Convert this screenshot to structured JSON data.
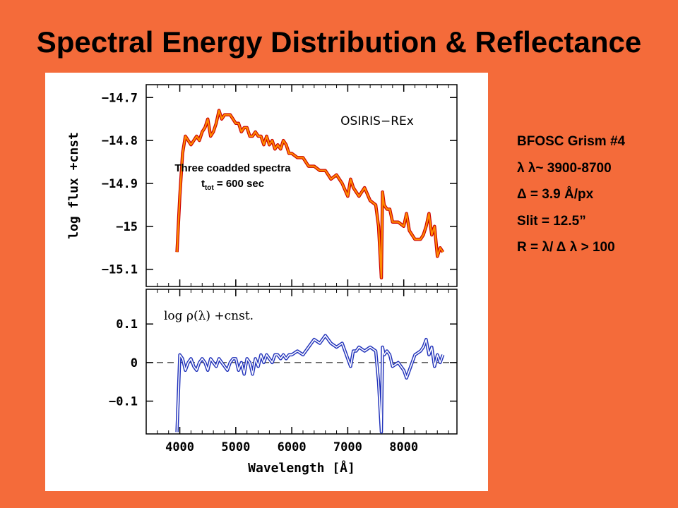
{
  "slide": {
    "title": "Spectral Energy Distribution & Reflectance"
  },
  "specs": [
    "BFOSC Grism #4",
    "λ λ~ 3900-8700",
    "Δ = 3.9 Å/px",
    "Slit = 12.5”",
    "R = λ/ Δ λ > 100"
  ],
  "annotation": {
    "line1": "Three coadded spectra",
    "t_symbol": "t",
    "t_sub": "tot",
    "t_rest": " = 600 sec"
  },
  "colors": {
    "background": "#f46b3a",
    "flux_line": "#ff8c00",
    "flux_edge": "#cc0000",
    "reflectance_line": "#2233bb"
  },
  "chart_data": [
    {
      "type": "line",
      "panel": "top",
      "title": "",
      "label": "OSIRIS−REx",
      "ylabel": "log flux +cnst",
      "xlabel": "",
      "xlim": [
        3400,
        8950
      ],
      "ylim": [
        -15.14,
        -14.67
      ],
      "yticks": [
        -14.7,
        -14.8,
        -14.9,
        -15,
        -15.1
      ],
      "ytick_labels": [
        "−14.7",
        "−14.8",
        "−14.9",
        "−15",
        "−15.1"
      ],
      "grid": false,
      "series": [
        {
          "x": [
            3950,
            4000,
            4050,
            4100,
            4150,
            4200,
            4250,
            4300,
            4350,
            4400,
            4450,
            4500,
            4550,
            4600,
            4650,
            4700,
            4750,
            4800,
            4850,
            4900,
            4950,
            5000,
            5050,
            5100,
            5150,
            5200,
            5250,
            5300,
            5350,
            5400,
            5450,
            5500,
            5550,
            5600,
            5650,
            5700,
            5750,
            5800,
            5850,
            5900,
            5950,
            6000,
            6100,
            6200,
            6300,
            6400,
            6500,
            6600,
            6700,
            6800,
            6900,
            7000,
            7050,
            7100,
            7150,
            7200,
            7300,
            7400,
            7500,
            7550,
            7600,
            7620,
            7650,
            7700,
            7750,
            7800,
            7900,
            8000,
            8050,
            8100,
            8200,
            8300,
            8350,
            8400,
            8450,
            8500,
            8550,
            8600,
            8650,
            8700
          ],
          "values": [
            -15.06,
            -14.93,
            -14.83,
            -14.79,
            -14.8,
            -14.81,
            -14.8,
            -14.79,
            -14.8,
            -14.78,
            -14.77,
            -14.75,
            -14.79,
            -14.78,
            -14.76,
            -14.73,
            -14.75,
            -14.74,
            -14.74,
            -14.74,
            -14.75,
            -14.76,
            -14.76,
            -14.78,
            -14.77,
            -14.77,
            -14.79,
            -14.79,
            -14.78,
            -14.79,
            -14.79,
            -14.81,
            -14.79,
            -14.81,
            -14.8,
            -14.82,
            -14.81,
            -14.82,
            -14.8,
            -14.81,
            -14.83,
            -14.83,
            -14.84,
            -14.84,
            -14.86,
            -14.86,
            -14.87,
            -14.87,
            -14.89,
            -14.88,
            -14.9,
            -14.93,
            -14.89,
            -14.91,
            -14.92,
            -14.93,
            -14.91,
            -14.94,
            -14.95,
            -15.0,
            -15.12,
            -14.92,
            -14.95,
            -14.96,
            -14.96,
            -14.99,
            -14.99,
            -15.0,
            -14.97,
            -15.01,
            -15.03,
            -15.03,
            -15.02,
            -15.0,
            -14.97,
            -15.02,
            -15.0,
            -15.07,
            -15.05,
            -15.06
          ]
        }
      ]
    },
    {
      "type": "line",
      "panel": "bottom",
      "title": "",
      "label": "log ρ(λ) +cnst.",
      "ylabel": "",
      "xlabel": "Wavelength [Å]",
      "xlim": [
        3400,
        8950
      ],
      "ylim": [
        -0.185,
        0.19
      ],
      "xticks": [
        4000,
        5000,
        6000,
        7000,
        8000
      ],
      "xtick_labels": [
        "4000",
        "5000",
        "6000",
        "7000",
        "8000"
      ],
      "yticks": [
        0.1,
        0,
        -0.1
      ],
      "ytick_labels": [
        "0.1",
        "0",
        "−0.1"
      ],
      "reference_line": 0,
      "grid": false,
      "series": [
        {
          "x": [
            3950,
            4000,
            4050,
            4100,
            4150,
            4200,
            4250,
            4300,
            4350,
            4400,
            4450,
            4500,
            4550,
            4600,
            4650,
            4700,
            4750,
            4800,
            4850,
            4900,
            4950,
            5000,
            5050,
            5100,
            5150,
            5200,
            5250,
            5300,
            5350,
            5400,
            5450,
            5500,
            5550,
            5600,
            5650,
            5700,
            5750,
            5800,
            5850,
            5900,
            5950,
            6000,
            6100,
            6200,
            6300,
            6400,
            6500,
            6600,
            6700,
            6800,
            6900,
            7000,
            7050,
            7100,
            7150,
            7200,
            7300,
            7400,
            7500,
            7550,
            7600,
            7620,
            7650,
            7700,
            7750,
            7800,
            7900,
            8000,
            8050,
            8100,
            8200,
            8300,
            8350,
            8400,
            8450,
            8500,
            8550,
            8600,
            8650,
            8700
          ],
          "values": [
            -0.18,
            0.02,
            0.01,
            -0.02,
            0.0,
            0.01,
            -0.01,
            -0.02,
            0.0,
            0.01,
            0.0,
            -0.02,
            0.01,
            0.0,
            -0.01,
            0.01,
            0.0,
            -0.01,
            -0.02,
            0.0,
            0.01,
            0.01,
            -0.02,
            0.0,
            -0.03,
            0.01,
            0.0,
            -0.03,
            0.01,
            -0.01,
            0.02,
            0.0,
            0.02,
            0.01,
            0.0,
            0.02,
            0.02,
            0.01,
            0.02,
            0.01,
            0.02,
            0.02,
            0.03,
            0.02,
            0.04,
            0.06,
            0.05,
            0.07,
            0.05,
            0.04,
            0.05,
            0.01,
            -0.01,
            0.03,
            0.03,
            0.04,
            0.03,
            0.04,
            0.03,
            -0.05,
            -0.18,
            0.04,
            0.02,
            0.03,
            0.02,
            -0.01,
            0.0,
            -0.02,
            -0.04,
            -0.02,
            0.02,
            0.03,
            0.04,
            0.06,
            0.02,
            0.04,
            -0.01,
            0.02,
            0.0,
            0.02
          ]
        }
      ]
    }
  ]
}
